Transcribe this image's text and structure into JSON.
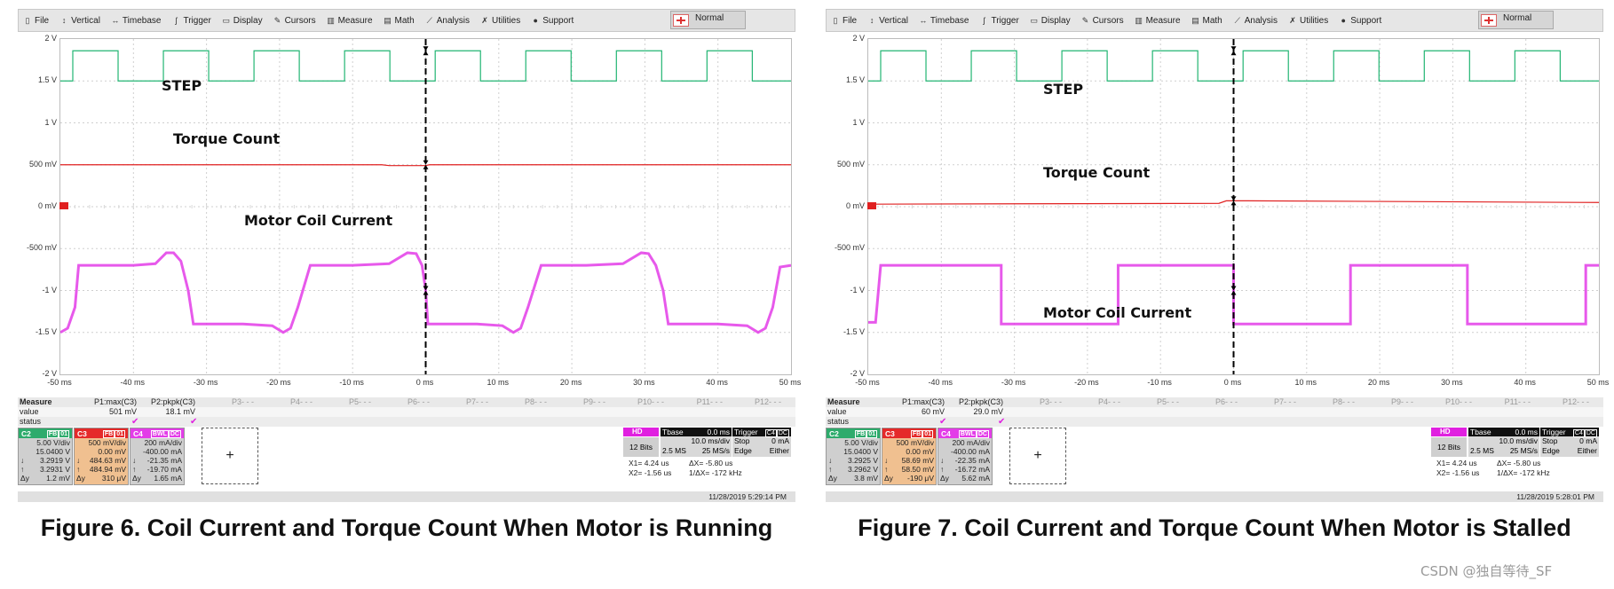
{
  "menu": [
    {
      "label": "File",
      "icon": "file-icon"
    },
    {
      "label": "Vertical",
      "icon": "vertical-icon"
    },
    {
      "label": "Timebase",
      "icon": "timebase-icon"
    },
    {
      "label": "Trigger",
      "icon": "trigger-icon"
    },
    {
      "label": "Display",
      "icon": "display-icon"
    },
    {
      "label": "Cursors",
      "icon": "cursors-icon"
    },
    {
      "label": "Measure",
      "icon": "measure-icon"
    },
    {
      "label": "Math",
      "icon": "math-icon"
    },
    {
      "label": "Analysis",
      "icon": "analysis-icon"
    },
    {
      "label": "Utilities",
      "icon": "utilities-icon"
    },
    {
      "label": "Support",
      "icon": "support-icon"
    }
  ],
  "trigger_mode": "Normal",
  "y_ticks": [
    "2 V",
    "1.5 V",
    "1 V",
    "500 mV",
    "0 mV",
    "-500 mV",
    "-1 V",
    "-1.5 V",
    "-2 V"
  ],
  "x_ticks": [
    "-50 ms",
    "-40 ms",
    "-30 ms",
    "-20 ms",
    "-10 ms",
    "0 ms",
    "10 ms",
    "20 ms",
    "30 ms",
    "40 ms",
    "50 ms"
  ],
  "measure": {
    "title": "Measure",
    "row_value": "value",
    "row_status": "status",
    "params": [
      "P1:max(C3)",
      "P2:pkpk(C3)",
      "P3- - -",
      "P4- - -",
      "P5- - -",
      "P6- - -",
      "P7- - -",
      "P8- - -",
      "P9- - -",
      "P10- - -",
      "P11- - -",
      "P12- - -"
    ]
  },
  "colors": {
    "c2": "#22b573",
    "c3": "#e02020",
    "c4": "#e33ce8"
  },
  "watermark": "CSDN @独自等待_SF",
  "panels": [
    {
      "labels": {
        "step": "STEP",
        "torque": "Torque Count",
        "coil": "Motor Coil Current"
      },
      "label_pos": "running",
      "meas_values": [
        "501 mV",
        "18.1 mV"
      ],
      "c2": {
        "name": "C2",
        "tags": [
          "FB",
          "01"
        ],
        "l1": [
          "",
          "5.00 V/div"
        ],
        "l2": [
          "",
          "15.0400 V"
        ],
        "l3": [
          "↓",
          "3.2919 V"
        ],
        "l4": [
          "↑",
          "3.2931 V"
        ],
        "l5": [
          "Δy",
          "1.2 mV"
        ]
      },
      "c3": {
        "name": "C3",
        "tags": [
          "FB",
          "01"
        ],
        "l1": [
          "",
          "500 mV/div"
        ],
        "l2": [
          "",
          "0.00 mV"
        ],
        "l3": [
          "↓",
          "484.63 mV"
        ],
        "l4": [
          "↑",
          "484.94 mV"
        ],
        "l5": [
          "Δy",
          "310 μV"
        ]
      },
      "c4": {
        "name": "C4",
        "tags": [
          "BWL",
          "DC"
        ],
        "l1": [
          "",
          "200 mA/div"
        ],
        "l2": [
          "",
          "-400.00 mA"
        ],
        "l3": [
          "↓",
          "-21.35 mA"
        ],
        "l4": [
          "↑",
          "-19.70 mA"
        ],
        "l5": [
          "Δy",
          "1.65 mA"
        ]
      },
      "hd": "HD",
      "bits": "12 Bits",
      "tbase": {
        "title": "Tbase",
        "delay": "0.0 ms",
        "div": "10.0 ms/div",
        "samples": "2.5 MS",
        "rate": "25 MS/s"
      },
      "trigger": {
        "title": "Trigger",
        "tags": [
          "C4",
          "DC"
        ],
        "mode": "Stop",
        "level": "0 mA",
        "type": "Edge",
        "slope": "Either"
      },
      "cursors": {
        "x1": "X1= 4.24 us",
        "dx": "ΔX= -5.80 us",
        "x2": "X2= -1.56 us",
        "inv": "1/ΔX= -172 kHz"
      },
      "timestamp": "11/28/2019 5:29:14 PM",
      "caption": "Figure 6. Coil Current and Torque Count When Motor is Running"
    },
    {
      "labels": {
        "step": "STEP",
        "torque": "Torque Count",
        "coil": "Motor Coil Current"
      },
      "label_pos": "stalled",
      "meas_values": [
        "60 mV",
        "29.0 mV"
      ],
      "c2": {
        "name": "C2",
        "tags": [
          "FB",
          "01"
        ],
        "l1": [
          "",
          "5.00 V/div"
        ],
        "l2": [
          "",
          "15.0400 V"
        ],
        "l3": [
          "↓",
          "3.2925 V"
        ],
        "l4": [
          "↑",
          "3.2962 V"
        ],
        "l5": [
          "Δy",
          "3.8 mV"
        ]
      },
      "c3": {
        "name": "C3",
        "tags": [
          "FB",
          "01"
        ],
        "l1": [
          "",
          "500 mV/div"
        ],
        "l2": [
          "",
          "0.00 mV"
        ],
        "l3": [
          "↓",
          "58.69 mV"
        ],
        "l4": [
          "↑",
          "58.50 mV"
        ],
        "l5": [
          "Δy",
          "-190 μV"
        ]
      },
      "c4": {
        "name": "C4",
        "tags": [
          "BWL",
          "DC"
        ],
        "l1": [
          "",
          "200 mA/div"
        ],
        "l2": [
          "",
          "-400.00 mA"
        ],
        "l3": [
          "↓",
          "-22.35 mA"
        ],
        "l4": [
          "↑",
          "-16.72 mA"
        ],
        "l5": [
          "Δy",
          "5.62 mA"
        ]
      },
      "hd": "HD",
      "bits": "12 Bits",
      "tbase": {
        "title": "Tbase",
        "delay": "0.0 ms",
        "div": "10.0 ms/div",
        "samples": "2.5 MS",
        "rate": "25 MS/s"
      },
      "trigger": {
        "title": "Trigger",
        "tags": [
          "C4",
          "DC"
        ],
        "mode": "Stop",
        "level": "0 mA",
        "type": "Edge",
        "slope": "Either"
      },
      "cursors": {
        "x1": "X1= 4.24 us",
        "dx": "ΔX= -5.80 us",
        "x2": "X2= -1.56 us",
        "inv": "1/ΔX= -172 kHz"
      },
      "timestamp": "11/28/2019 5:28:01 PM",
      "caption": "Figure 7. Coil Current and Torque Count When Motor is Stalled"
    }
  ]
}
